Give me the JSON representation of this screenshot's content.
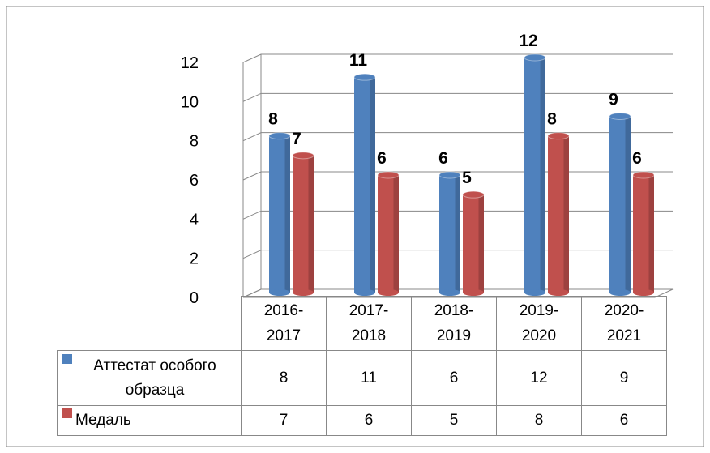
{
  "chart_data": {
    "type": "bar",
    "categories": [
      "2016-2017",
      "2017-2018",
      "2018-2019",
      "2019-2020",
      "2020-2021"
    ],
    "series": [
      {
        "name": "Аттестат особого образца",
        "color": "#4f81bd",
        "values": [
          8,
          11,
          6,
          12,
          9
        ]
      },
      {
        "name": "Медаль",
        "color": "#c0504d",
        "values": [
          7,
          6,
          5,
          8,
          6
        ]
      }
    ],
    "ylim": [
      0,
      12
    ],
    "yticks": [
      0,
      2,
      4,
      6,
      8,
      10,
      12
    ],
    "grid": true
  }
}
